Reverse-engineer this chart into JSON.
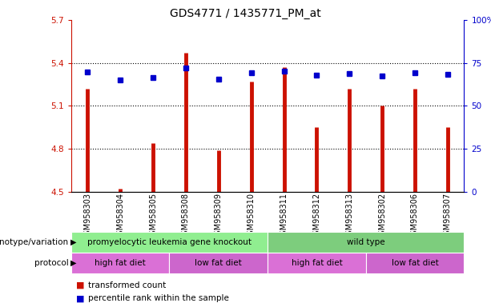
{
  "title": "GDS4771 / 1435771_PM_at",
  "samples": [
    "GSM958303",
    "GSM958304",
    "GSM958305",
    "GSM958308",
    "GSM958309",
    "GSM958310",
    "GSM958311",
    "GSM958312",
    "GSM958313",
    "GSM958302",
    "GSM958306",
    "GSM958307"
  ],
  "bar_values": [
    5.22,
    4.52,
    4.84,
    5.47,
    4.79,
    5.27,
    5.37,
    4.95,
    5.22,
    5.1,
    5.22,
    4.95
  ],
  "dot_values": [
    5.335,
    5.278,
    5.298,
    5.362,
    5.288,
    5.33,
    5.34,
    5.315,
    5.325,
    5.308,
    5.33,
    5.318
  ],
  "ylim": [
    4.5,
    5.7
  ],
  "yticks_left": [
    4.5,
    4.8,
    5.1,
    5.4,
    5.7
  ],
  "yticks_right": [
    0,
    25,
    50,
    75,
    100
  ],
  "bar_color": "#cc1100",
  "dot_color": "#0000cc",
  "bar_bottom": 4.5,
  "genotype_groups": [
    {
      "label": "promyelocytic leukemia gene knockout",
      "start": 0,
      "end": 6,
      "color": "#90ee90"
    },
    {
      "label": "wild type",
      "start": 6,
      "end": 12,
      "color": "#7dcd7d"
    }
  ],
  "protocol_groups": [
    {
      "label": "high fat diet",
      "start": 0,
      "end": 3,
      "color": "#da70d6"
    },
    {
      "label": "low fat diet",
      "start": 3,
      "end": 6,
      "color": "#cc66cc"
    },
    {
      "label": "high fat diet",
      "start": 6,
      "end": 9,
      "color": "#da70d6"
    },
    {
      "label": "low fat diet",
      "start": 9,
      "end": 12,
      "color": "#cc66cc"
    }
  ],
  "title_fontsize": 10,
  "tick_fontsize": 7.5,
  "meta_fontsize": 7.5
}
